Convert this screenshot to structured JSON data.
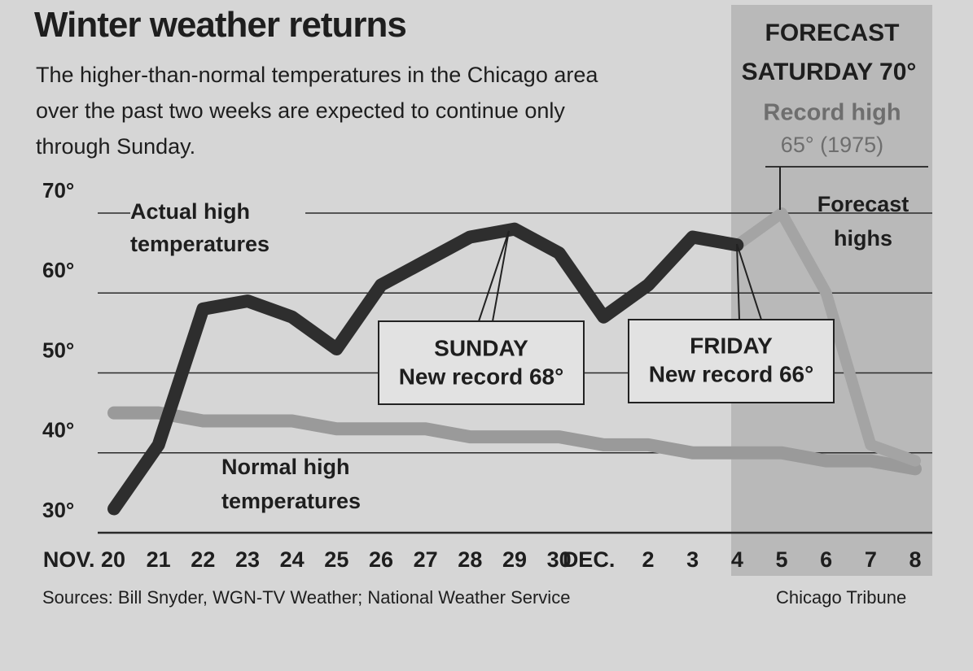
{
  "chart_data": {
    "type": "line",
    "title": "Winter weather returns",
    "subtitle": "The higher-than-normal temperatures in the Chicago area over the past two weeks are expected to continue only through Sunday.",
    "forecast_panel": {
      "heading": "FORECAST",
      "forecast": "SATURDAY 70°",
      "record_label": "Record high",
      "record": "65° (1975)"
    },
    "categories": [
      "NOV. 20",
      "21",
      "22",
      "23",
      "24",
      "25",
      "26",
      "27",
      "28",
      "29",
      "30",
      "DEC.",
      "2",
      "3",
      "4",
      "5",
      "6",
      "7",
      "8"
    ],
    "series": [
      {
        "name": "Actual high temperatures",
        "color": "#2e2e2e",
        "values": [
          33,
          41,
          58,
          59,
          57,
          53,
          61,
          64,
          67,
          68,
          65,
          57,
          61,
          67,
          66,
          null,
          null,
          null,
          null
        ]
      },
      {
        "name": "Forecast highs",
        "color": "#a4a4a4",
        "values": [
          null,
          null,
          null,
          null,
          null,
          null,
          null,
          null,
          null,
          null,
          null,
          null,
          null,
          null,
          66,
          70,
          60,
          41,
          39
        ]
      },
      {
        "name": "Normal high temperatures",
        "color": "#9a9a9a",
        "values": [
          45,
          45,
          44,
          44,
          44,
          43,
          43,
          43,
          42,
          42,
          42,
          41,
          41,
          40,
          40,
          40,
          39,
          39,
          38
        ]
      }
    ],
    "annotations": [
      {
        "day": "SUNDAY",
        "text": "New record 68°"
      },
      {
        "day": "FRIDAY",
        "text": "New record 66°"
      }
    ],
    "ylim": [
      30,
      70
    ],
    "yticks": [
      {
        "value": 30,
        "label": "30°"
      },
      {
        "value": 40,
        "label": "40°"
      },
      {
        "value": 50,
        "label": "50°"
      },
      {
        "value": 60,
        "label": "60°"
      },
      {
        "value": 70,
        "label": "70°"
      }
    ],
    "grid": true,
    "source": "Sources: Bill Snyder, WGN-TV Weather; National Weather Service",
    "credit": "Chicago Tribune"
  }
}
